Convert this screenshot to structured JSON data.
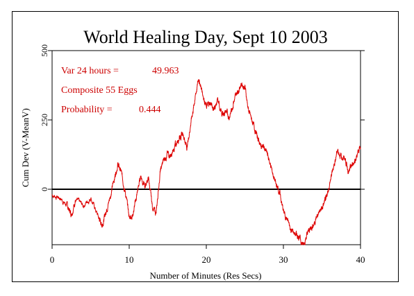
{
  "chart_data": {
    "type": "line",
    "title": "World Healing Day, Sept 10 2003",
    "xlabel": "Number of Minutes (Res Secs)",
    "ylabel": "Cum Dev (V-MeanV)",
    "xlim": [
      0,
      40
    ],
    "ylim": [
      -200,
      500
    ],
    "x_ticks": [
      "0",
      "10",
      "20",
      "30",
      "40"
    ],
    "y_ticks": [
      "0",
      "250",
      "500"
    ],
    "annotations": {
      "var_label": "Var 24 hours =",
      "var_value": "49.963",
      "eggs": "Composite 55 Eggs",
      "prob_label": "Probability =",
      "prob_value": "0.444"
    },
    "line_color": "#dd0000",
    "series": [
      {
        "x": [
          0,
          1,
          2,
          2.5,
          3,
          4,
          5,
          6,
          6.5,
          7,
          7.5,
          8,
          8.5,
          9,
          9.5,
          10,
          10.5,
          11,
          11.5,
          12,
          12.5,
          13,
          13.5,
          14,
          14.5,
          15,
          15.5,
          16,
          16.5,
          17,
          17.5,
          18,
          18.5,
          19,
          19.5,
          20,
          20.5,
          21,
          21.5,
          22,
          22.5,
          23,
          23.5,
          24,
          24.5,
          25,
          25.5,
          26,
          26.5,
          27,
          27.5,
          28,
          28.5,
          29,
          29.5,
          30,
          30.5,
          31,
          31.5,
          32,
          32.5,
          33,
          33.5,
          34,
          34.5,
          35,
          35.5,
          36,
          36.5,
          37,
          37.5,
          38,
          38.5,
          39,
          39.5,
          40
        ],
        "y": [
          -20,
          -30,
          -60,
          -90,
          -40,
          -60,
          -30,
          -100,
          -130,
          -80,
          -30,
          30,
          90,
          60,
          -10,
          -100,
          -90,
          -20,
          50,
          10,
          40,
          -60,
          -90,
          60,
          110,
          130,
          120,
          160,
          190,
          200,
          150,
          240,
          320,
          400,
          350,
          300,
          310,
          290,
          320,
          270,
          280,
          260,
          310,
          350,
          380,
          370,
          280,
          240,
          200,
          160,
          150,
          120,
          70,
          20,
          -10,
          -80,
          -110,
          -150,
          -160,
          -170,
          -200,
          -170,
          -140,
          -120,
          -90,
          -70,
          -40,
          20,
          80,
          140,
          120,
          110,
          60,
          90,
          120,
          150
        ]
      }
    ]
  }
}
